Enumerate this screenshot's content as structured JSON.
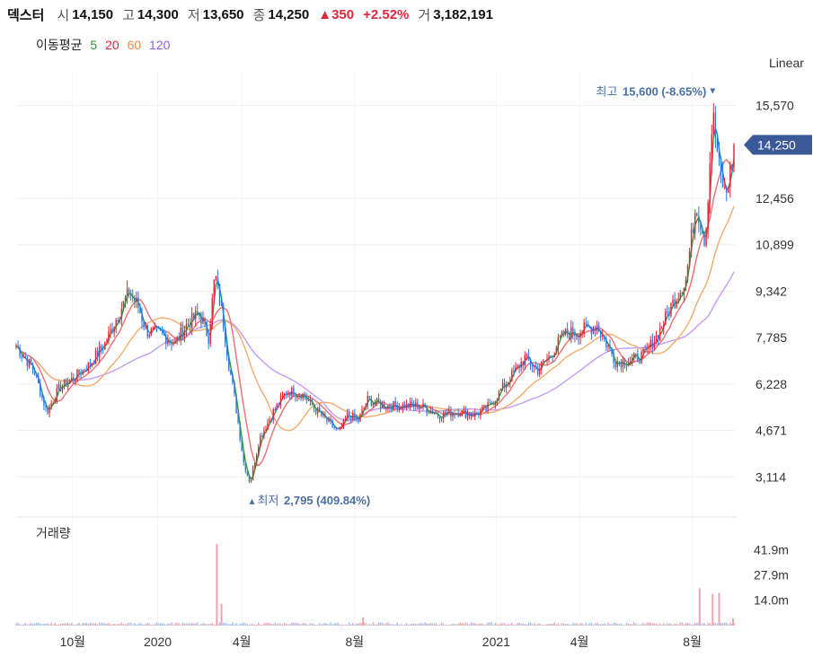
{
  "header": {
    "name": "덱스터",
    "open_label": "시",
    "open": "14,150",
    "high_label": "고",
    "high": "14,300",
    "low_label": "저",
    "low": "13,650",
    "close_label": "종",
    "close": "14,250",
    "change": "▲350",
    "change_pct": "+2.52%",
    "volume_label": "거",
    "volume": "3,182,191"
  },
  "ma_legend": {
    "label": "이동평균",
    "items": [
      {
        "text": "5",
        "color": "#2e9a3a"
      },
      {
        "text": "20",
        "color": "#e0263a"
      },
      {
        "text": "60",
        "color": "#f08a3e"
      },
      {
        "text": "120",
        "color": "#8b5cf6"
      }
    ]
  },
  "scale_label": "Linear",
  "volume_title": "거래량",
  "annotations": {
    "high_text": "최고",
    "high_value": "15,600 (-8.65%)",
    "low_text": "최저",
    "low_value": "2,795 (409.84%)"
  },
  "current_price_tag": "14,250",
  "chart_data": {
    "type": "candlestick",
    "y_ticks": [
      "15,570",
      "12,456",
      "10,899",
      "9,342",
      "7,785",
      "6,228",
      "4,671",
      "3,114"
    ],
    "y_tick_values": [
      15570,
      12456,
      10899,
      9342,
      7785,
      6228,
      4671,
      3114
    ],
    "ylim": [
      2250,
      16700
    ],
    "x_ticks": [
      "10월",
      "2020",
      "4월",
      "8월",
      "2021",
      "4월",
      "8월"
    ],
    "x_tick_dates": [
      "2019-10-01",
      "2020-01-01",
      "2020-04-01",
      "2020-08-01",
      "2021-01-01",
      "2021-04-01",
      "2021-08-01"
    ],
    "x_range": [
      "2019-08-01",
      "2021-09-16"
    ],
    "close_path": [
      [
        "2019-08-01",
        7500
      ],
      [
        "2019-08-20",
        6700
      ],
      [
        "2019-09-03",
        5300
      ],
      [
        "2019-09-17",
        6100
      ],
      [
        "2019-10-01",
        6400
      ],
      [
        "2019-10-20",
        6900
      ],
      [
        "2019-11-05",
        7600
      ],
      [
        "2019-11-20",
        8600
      ],
      [
        "2019-12-01",
        9300
      ],
      [
        "2019-12-10",
        8900
      ],
      [
        "2019-12-20",
        8000
      ],
      [
        "2020-01-05",
        7900
      ],
      [
        "2020-01-20",
        7600
      ],
      [
        "2020-02-01",
        8200
      ],
      [
        "2020-02-15",
        8600
      ],
      [
        "2020-02-25",
        7800
      ],
      [
        "2020-03-03",
        9900
      ],
      [
        "2020-03-10",
        8700
      ],
      [
        "2020-03-18",
        6900
      ],
      [
        "2020-03-25",
        5600
      ],
      [
        "2020-04-03",
        3600
      ],
      [
        "2020-04-10",
        2900
      ],
      [
        "2020-04-20",
        4400
      ],
      [
        "2020-05-05",
        5300
      ],
      [
        "2020-05-20",
        6000
      ],
      [
        "2020-06-05",
        5900
      ],
      [
        "2020-06-25",
        5200
      ],
      [
        "2020-07-15",
        4600
      ],
      [
        "2020-07-25",
        5200
      ],
      [
        "2020-08-05",
        5000
      ],
      [
        "2020-08-15",
        5700
      ],
      [
        "2020-09-01",
        5500
      ],
      [
        "2020-09-20",
        5500
      ],
      [
        "2020-10-10",
        5500
      ],
      [
        "2020-11-01",
        5200
      ],
      [
        "2020-11-20",
        5300
      ],
      [
        "2020-12-10",
        5200
      ],
      [
        "2020-12-25",
        5500
      ],
      [
        "2021-01-15",
        6400
      ],
      [
        "2021-02-01",
        7100
      ],
      [
        "2021-02-15",
        6700
      ],
      [
        "2021-03-01",
        7200
      ],
      [
        "2021-03-15",
        7900
      ],
      [
        "2021-04-01",
        8000
      ],
      [
        "2021-04-20",
        8200
      ],
      [
        "2021-05-10",
        7000
      ],
      [
        "2021-05-25",
        7000
      ],
      [
        "2021-06-10",
        7200
      ],
      [
        "2021-06-25",
        7900
      ],
      [
        "2021-07-10",
        8900
      ],
      [
        "2021-07-25",
        9700
      ],
      [
        "2021-08-05",
        12300
      ],
      [
        "2021-08-15",
        11000
      ],
      [
        "2021-08-23",
        15300
      ],
      [
        "2021-08-30",
        13500
      ],
      [
        "2021-09-06",
        12500
      ],
      [
        "2021-09-16",
        14250
      ]
    ],
    "high": {
      "date": "2021-08-23",
      "value": 15600
    },
    "low": {
      "date": "2020-04-10",
      "value": 2795
    },
    "last_close": 14250,
    "volume_ticks": [
      "41.9m",
      "27.9m",
      "14.0m"
    ],
    "volume_tick_values": [
      41.9,
      27.9,
      14.0
    ],
    "volume_spikes_millions": [
      [
        "2020-03-05",
        45.0
      ],
      [
        "2020-03-10",
        12.0
      ],
      [
        "2020-08-10",
        4.5
      ],
      [
        "2021-08-09",
        20.5
      ],
      [
        "2021-08-23",
        17.5
      ],
      [
        "2021-08-30",
        18.0
      ],
      [
        "2021-09-14",
        4.0
      ]
    ],
    "colors": {
      "up": "#e0263a",
      "down": "#2a7ae2",
      "ma5": "#2e9a3a",
      "ma20": "#f06e6e",
      "ma60": "#f3ac6c",
      "ma120": "#c49cf5",
      "tag": "#3b5998"
    }
  }
}
